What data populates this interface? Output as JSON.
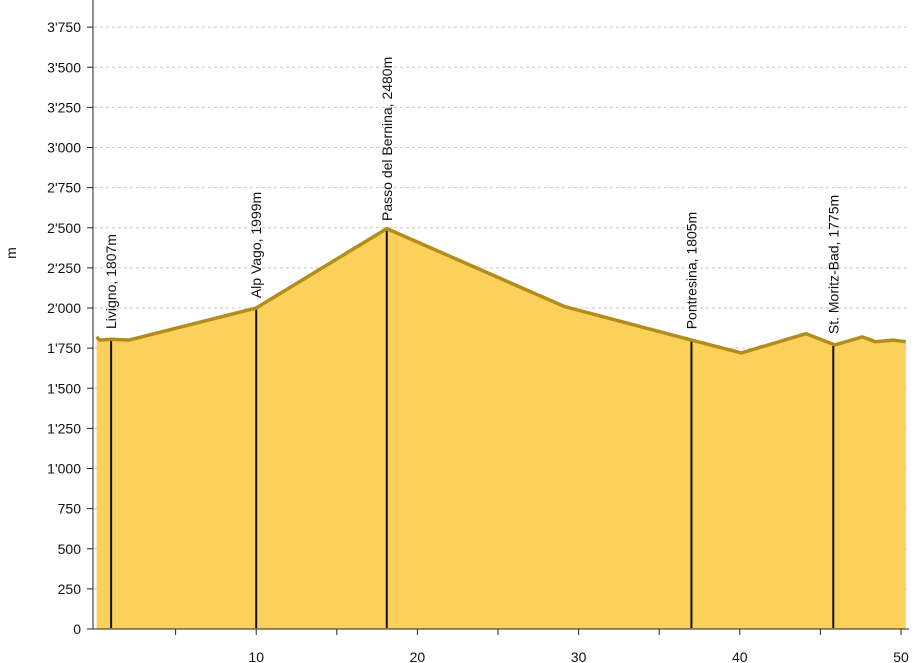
{
  "chart_data": {
    "type": "area",
    "ylabel": "m",
    "xlabel": "",
    "xlim": [
      0,
      50.3
    ],
    "ylim": [
      0,
      3900
    ],
    "grid": true,
    "colors": {
      "fill": "#fbd15b",
      "line": "#b38d1c",
      "marker": "#111111",
      "grid": "#c8c8c8",
      "axis": "#222222"
    },
    "x_major_ticks": [
      10,
      20,
      30,
      40,
      50
    ],
    "x_minor_ticks": [
      5,
      15,
      25,
      35,
      45
    ],
    "y_ticks": [
      {
        "value": 0,
        "label": "0"
      },
      {
        "value": 250,
        "label": "250"
      },
      {
        "value": 500,
        "label": "500"
      },
      {
        "value": 750,
        "label": "750"
      },
      {
        "value": 1000,
        "label": "1'000"
      },
      {
        "value": 1250,
        "label": "1'250"
      },
      {
        "value": 1500,
        "label": "1'500"
      },
      {
        "value": 1750,
        "label": "1'750"
      },
      {
        "value": 2000,
        "label": "2'000"
      },
      {
        "value": 2250,
        "label": "2'250"
      },
      {
        "value": 2500,
        "label": "2'500"
      },
      {
        "value": 2750,
        "label": "2'750"
      },
      {
        "value": 3000,
        "label": "3'000"
      },
      {
        "value": 3250,
        "label": "3'250"
      },
      {
        "value": 3500,
        "label": "3'500"
      },
      {
        "value": 3750,
        "label": "3'750"
      }
    ],
    "profile": {
      "x": [
        0.1,
        0.3,
        1.0,
        2.1,
        10.0,
        18.1,
        29.1,
        37.0,
        40.1,
        44.1,
        45.9,
        47.6,
        48.4,
        49.5,
        50.3
      ],
      "y": [
        1820,
        1800,
        1805,
        1800,
        2000,
        2495,
        2010,
        1800,
        1720,
        1840,
        1770,
        1820,
        1790,
        1800,
        1790
      ]
    },
    "places": [
      {
        "label": "Livigno, 1807m",
        "x": 1.0,
        "elevation": 1807
      },
      {
        "label": "Alp Vago, 1999m",
        "x": 10.0,
        "elevation": 1999
      },
      {
        "label": "Passo del Bernina, 2480m",
        "x": 18.1,
        "elevation": 2480
      },
      {
        "label": "Pontresina, 1805m",
        "x": 37.0,
        "elevation": 1805
      },
      {
        "label": "St. Moritz-Bad, 1775m",
        "x": 45.8,
        "elevation": 1775
      }
    ]
  }
}
